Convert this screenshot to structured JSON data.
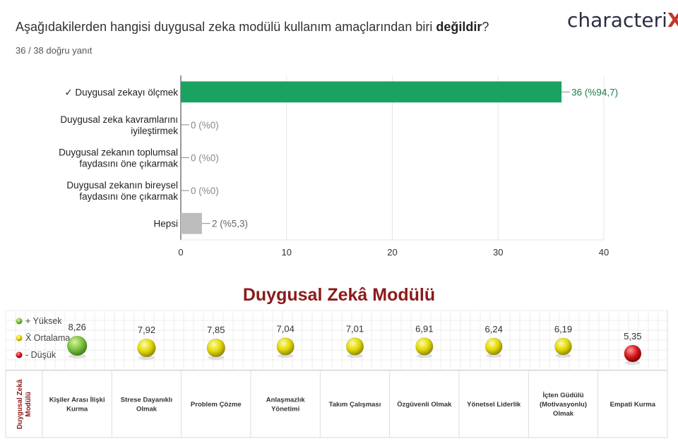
{
  "question": {
    "text_before": "Aşağıdakilerden hangisi duygusal zeka modülü kullanım amaçlarından biri ",
    "text_bold": "değildir",
    "text_after": "?",
    "answered": "36 / 38 doğru yanıt"
  },
  "logo": {
    "text": "characteri",
    "mark": "X"
  },
  "chart_data": [
    {
      "type": "bar",
      "orientation": "horizontal",
      "categories": [
        [
          "✓ Duygusal zekayı ölçmek"
        ],
        [
          "Duygusal zeka kavramlarını",
          "iyileştirmek"
        ],
        [
          "Duygusal zekanın toplumsal",
          "faydasını öne çıkarmak"
        ],
        [
          "Duygusal zekanın bireysel",
          "faydasını öne çıkarmak"
        ],
        [
          "Hepsi"
        ]
      ],
      "values": [
        36,
        0,
        0,
        0,
        2
      ],
      "data_labels": [
        "36 (%94,7)",
        "0 (%0)",
        "0 (%0)",
        "0 (%0)",
        "2 (%5,3)"
      ],
      "xlim": [
        0,
        40
      ],
      "xticks": [
        0,
        10,
        20,
        30,
        40
      ],
      "grid": true,
      "colors": [
        "#1aa260",
        "#bdbdbd",
        "#bdbdbd",
        "#bdbdbd",
        "#bdbdbd"
      ]
    },
    {
      "type": "scatter",
      "title": "Duygusal Zekâ Modülü",
      "row_label": "Duygusal Zekâ Modülü",
      "legend": [
        {
          "label": "+ Yüksek",
          "color": "#7cc242"
        },
        {
          "label": "X̄ Ortalama",
          "color": "#e2d800"
        },
        {
          "label": "- Düşük",
          "color": "#d7191c"
        }
      ],
      "legend_position": "top-left",
      "categories": [
        "Kişiler Arası İlişki Kurma",
        "Strese Dayanıklı Olmak",
        "Problem Çözme",
        "Anlaşmazlık Yönetimi",
        "Takım Çalışması",
        "Özgüvenli Olmak",
        "Yönetsel Liderlik",
        "İçten Güdülü (Motivasyonlu) Olmak",
        "Empati Kurma"
      ],
      "values": [
        "8,26",
        "7,92",
        "7,85",
        "7,04",
        "7,01",
        "6,91",
        "6,24",
        "6,19",
        "5,35"
      ],
      "levels": [
        "high",
        "avg",
        "avg",
        "avg",
        "avg",
        "avg",
        "avg",
        "avg",
        "low"
      ],
      "sizes": [
        1.0,
        0.92,
        0.92,
        0.88,
        0.88,
        0.88,
        0.86,
        0.86,
        0.86
      ]
    }
  ]
}
